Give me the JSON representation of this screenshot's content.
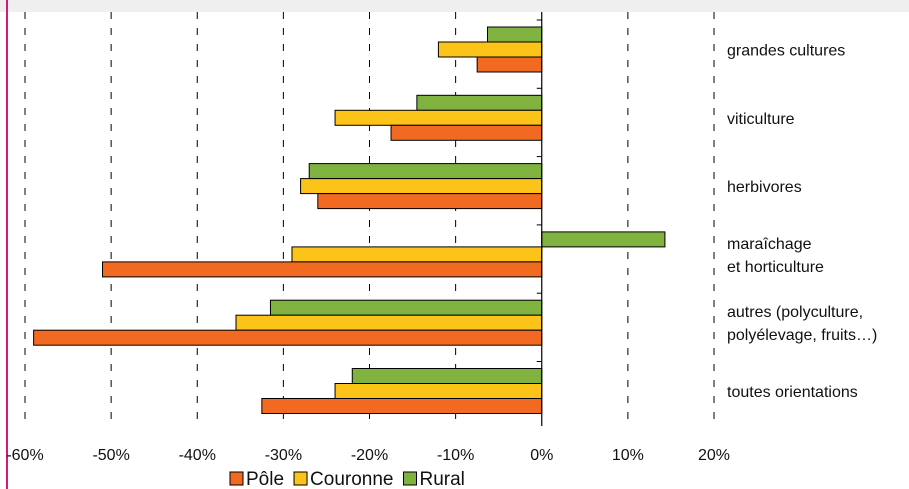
{
  "chart_data": {
    "type": "bar",
    "orientation": "horizontal",
    "categories": [
      [
        "grandes cultures"
      ],
      [
        "viticulture"
      ],
      [
        "herbivores"
      ],
      [
        "maraîchage",
        "et horticulture"
      ],
      [
        "autres (polyculture,",
        "polyélevage, fruits…)"
      ],
      [
        "toutes orientations"
      ]
    ],
    "series": [
      {
        "name": "Pôle",
        "color": "#f26a21",
        "values": [
          -7.5,
          -17.5,
          -26,
          -51,
          -59,
          -32.5
        ]
      },
      {
        "name": "Couronne",
        "color": "#fcc418",
        "values": [
          -12,
          -24,
          -28,
          -29,
          -35.5,
          -24
        ]
      },
      {
        "name": "Rural",
        "color": "#7fb23f",
        "values": [
          -6.3,
          -14.5,
          -27,
          14.3,
          -31.5,
          -22
        ]
      }
    ],
    "xlim": [
      -60,
      20
    ],
    "xticks": [
      -60,
      -50,
      -40,
      -30,
      -20,
      -10,
      0,
      10,
      20
    ],
    "xtick_labels": [
      "-60%",
      "-50%",
      "-40%",
      "-30%",
      "-20%",
      "-10%",
      "0%",
      "10%",
      "20%"
    ],
    "grid": "vertical dashed",
    "legend": "bottom",
    "title": "",
    "xlabel": "",
    "ylabel": ""
  }
}
